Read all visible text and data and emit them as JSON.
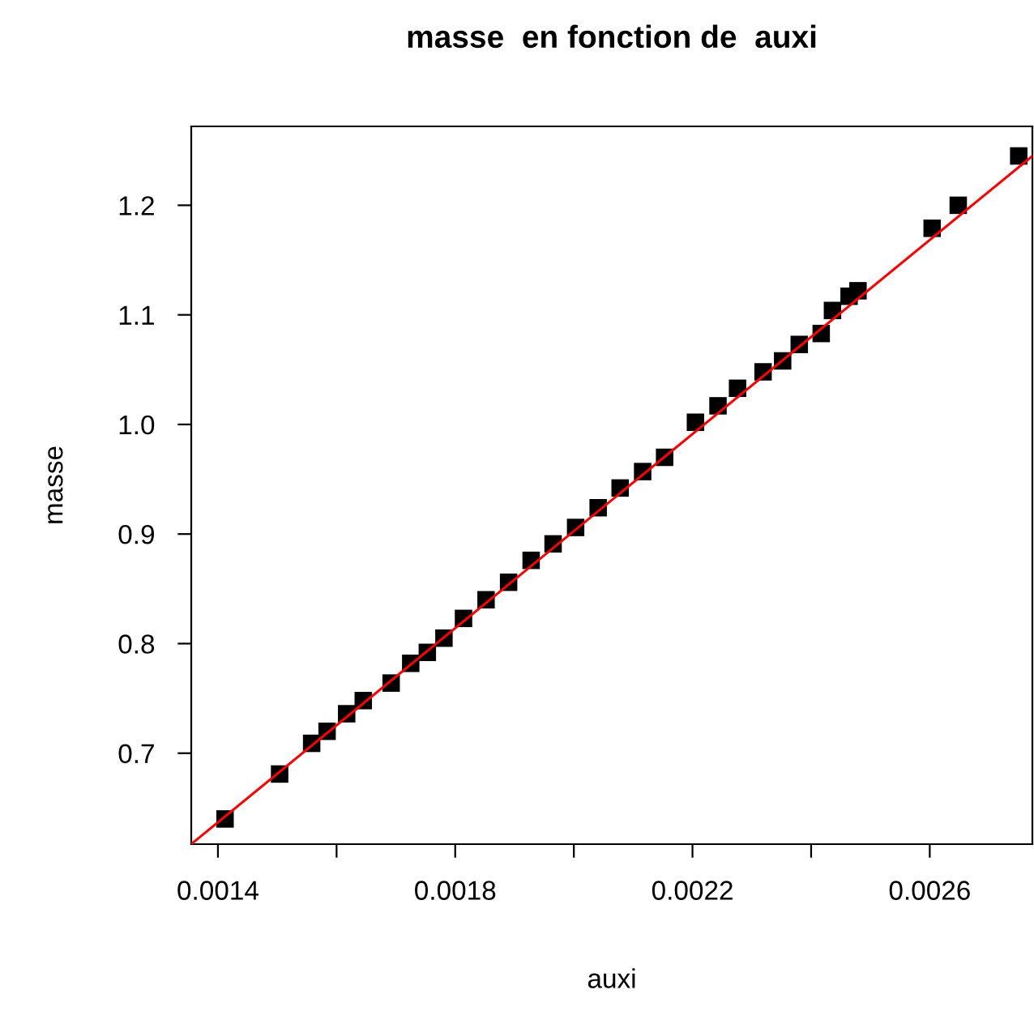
{
  "chart_data": {
    "type": "scatter",
    "title": "masse  en fonction de  auxi",
    "xlabel": "auxi",
    "ylabel": "masse",
    "xlim": [
      0.001355,
      0.002773
    ],
    "ylim": [
      0.617,
      1.272
    ],
    "xticks": [
      {
        "value": 0.0014,
        "label": "0.0014"
      },
      {
        "value": 0.0016,
        "label": null
      },
      {
        "value": 0.0018,
        "label": "0.0018"
      },
      {
        "value": 0.002,
        "label": null
      },
      {
        "value": 0.0022,
        "label": "0.0022"
      },
      {
        "value": 0.0024,
        "label": null
      },
      {
        "value": 0.0026,
        "label": "0.0026"
      }
    ],
    "yticks": [
      0.7,
      0.8,
      0.9,
      {
        "value": 1.0,
        "label": "1.0"
      },
      1.1,
      1.2
    ],
    "grid": false,
    "series": [
      {
        "marker": "square",
        "color": "#000000",
        "x": [
          0.001412,
          0.001504,
          0.001558,
          0.001584,
          0.001617,
          0.001645,
          0.001692,
          0.001725,
          0.001753,
          0.001781,
          0.001814,
          0.001852,
          0.00189,
          0.001928,
          0.001965,
          0.002003,
          0.002041,
          0.002078,
          0.002116,
          0.002153,
          0.002205,
          0.002243,
          0.002276,
          0.002319,
          0.002352,
          0.00238,
          0.002417,
          0.002436,
          0.002464,
          0.002479,
          0.002604,
          0.002648,
          0.00275
        ],
        "values": [
          0.64,
          0.681,
          0.709,
          0.72,
          0.736,
          0.748,
          0.764,
          0.782,
          0.792,
          0.805,
          0.823,
          0.84,
          0.856,
          0.876,
          0.891,
          0.906,
          0.924,
          0.942,
          0.957,
          0.97,
          1.002,
          1.017,
          1.033,
          1.048,
          1.058,
          1.073,
          1.083,
          1.104,
          1.117,
          1.122,
          1.179,
          1.2,
          1.245
        ]
      },
      {
        "type": "line",
        "marker": "none",
        "color": "#ff0000",
        "x": [
          0.001355,
          0.002773
        ],
        "values": [
          0.617,
          1.245
        ]
      }
    ]
  }
}
